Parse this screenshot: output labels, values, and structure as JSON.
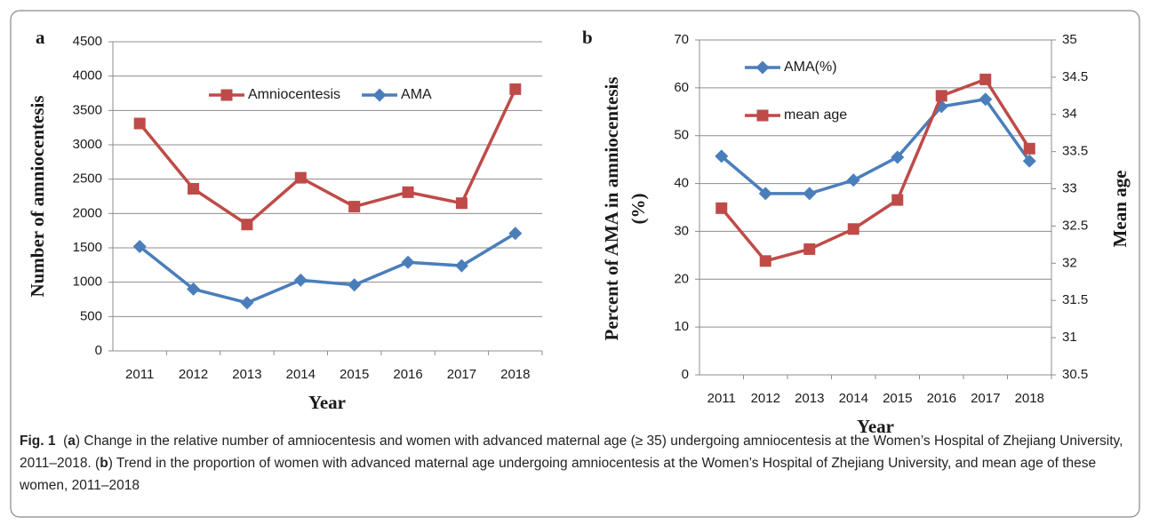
{
  "chart_data": [
    {
      "type": "line",
      "panel_label": "a",
      "ylabel": [
        "Number of amniocentesis"
      ],
      "xlabel": "Year",
      "categories": [
        "2011",
        "2012",
        "2013",
        "2014",
        "2015",
        "2016",
        "2017",
        "2018"
      ],
      "series": [
        {
          "name": "Amniocentesis",
          "color": "#be4b48",
          "marker": "square",
          "values": [
            3310,
            2360,
            1840,
            2520,
            2100,
            2310,
            2150,
            3810
          ]
        },
        {
          "name": "AMA",
          "color": "#4a7ebb",
          "marker": "diamond",
          "values": [
            1520,
            900,
            700,
            1030,
            960,
            1290,
            1240,
            1710
          ]
        }
      ],
      "ylim": [
        0,
        4500
      ],
      "yticks": [
        0,
        500,
        1000,
        1500,
        2000,
        2500,
        3000,
        3500,
        4000,
        4500
      ],
      "grid": true,
      "legend": "upper center"
    },
    {
      "type": "line",
      "panel_label": "b",
      "ylabel": [
        "Percent of AMA in amniocentesis",
        "(%)"
      ],
      "y2label": "Mean age",
      "xlabel": "Year",
      "categories": [
        "2011",
        "2012",
        "2013",
        "2014",
        "2015",
        "2016",
        "2017",
        "2018"
      ],
      "series": [
        {
          "name": "AMA(%)",
          "color": "#4a7ebb",
          "marker": "diamond",
          "values": [
            45.7,
            37.9,
            37.9,
            40.7,
            45.5,
            56.1,
            57.6,
            44.7
          ]
        },
        {
          "name": "mean age",
          "color": "#be4b48",
          "marker": "square",
          "axis": "y2",
          "values": [
            32.74,
            32.03,
            32.19,
            32.46,
            32.85,
            34.25,
            34.47,
            33.54
          ]
        }
      ],
      "ylim": [
        0,
        70
      ],
      "yticks": [
        0,
        10,
        20,
        30,
        40,
        50,
        60,
        70
      ],
      "y2lim": [
        30.5,
        35
      ],
      "y2ticks": [
        30.5,
        31,
        31.5,
        32,
        32.5,
        33,
        33.5,
        34,
        34.5,
        35
      ],
      "grid": true,
      "legend": "upper left"
    }
  ],
  "caption": {
    "label": "Fig. 1",
    "parts": [
      "(",
      "a",
      ") Change in the relative number of amniocentesis and women with advanced maternal age (≥ 35) undergoing amniocentesis at the Women’s Hospital of Zhejiang University, 2011–2018. (",
      "b",
      ") Trend in the proportion of women with advanced maternal age undergoing amniocentesis at the Women’s Hospital of Zhejiang University, and mean age of these women, 2011–2018"
    ]
  }
}
